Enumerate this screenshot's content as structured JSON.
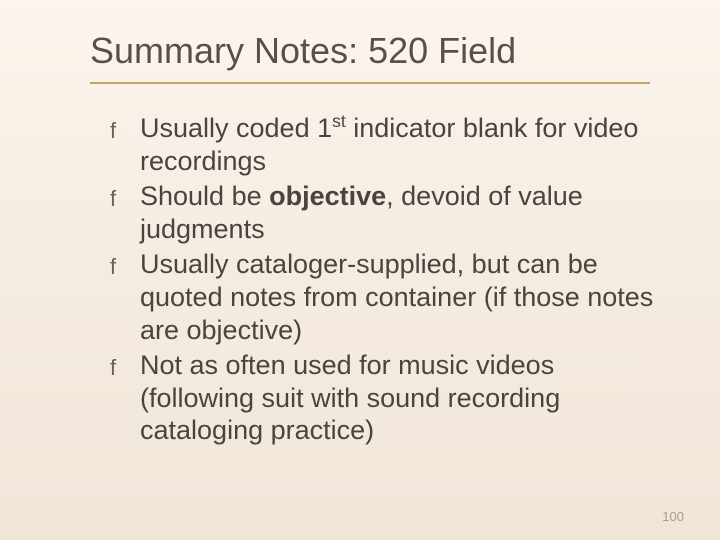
{
  "slide": {
    "title": "Summary Notes: 520 Field",
    "title_color": "#5a5048",
    "title_fontsize": 36,
    "underline_color": "#c7a36b",
    "background_gradient": [
      "#fbf5ed",
      "#f5ece0",
      "#f0e6d8"
    ],
    "body_color": "#4a4440",
    "body_fontsize": 27,
    "bullet_glyph": "f",
    "bullets": [
      {
        "pre": "Usually coded 1",
        "sup": "st",
        "post": " indicator blank for video recordings",
        "bold": null
      },
      {
        "pre": "Should be ",
        "bold": "objective",
        "post": ", devoid of value judgments",
        "sup": null
      },
      {
        "pre": "Usually cataloger-supplied, but can be quoted notes from container (if those notes are objective)",
        "bold": null,
        "post": "",
        "sup": null
      },
      {
        "pre": "Not as often used for music videos (following suit with sound recording cataloging practice)",
        "bold": null,
        "post": "",
        "sup": null
      }
    ],
    "page_number": "100",
    "page_number_color": "#a89b8c"
  }
}
